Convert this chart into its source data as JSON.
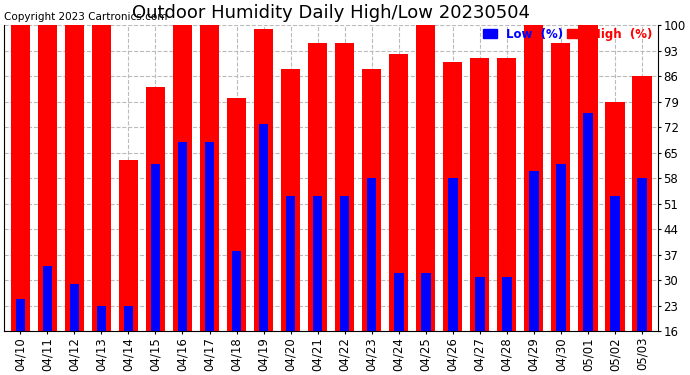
{
  "title": "Outdoor Humidity Daily High/Low 20230504",
  "copyright": "Copyright 2023 Cartronics.com",
  "legend_low": "Low  (%)",
  "legend_high": "High  (%)",
  "dates": [
    "04/10",
    "04/11",
    "04/12",
    "04/13",
    "04/14",
    "04/15",
    "04/16",
    "04/17",
    "04/18",
    "04/19",
    "04/20",
    "04/21",
    "04/22",
    "04/23",
    "04/24",
    "04/25",
    "04/26",
    "04/27",
    "04/28",
    "04/29",
    "04/30",
    "05/01",
    "05/02",
    "05/03"
  ],
  "high": [
    100,
    100,
    100,
    100,
    63,
    83,
    100,
    100,
    80,
    99,
    88,
    95,
    95,
    88,
    92,
    100,
    90,
    91,
    91,
    100,
    95,
    100,
    79,
    86
  ],
  "low": [
    25,
    34,
    29,
    23,
    23,
    62,
    68,
    68,
    38,
    73,
    53,
    53,
    53,
    58,
    32,
    32,
    58,
    31,
    31,
    60,
    62,
    76,
    53,
    58
  ],
  "bar_color_high": "#ff0000",
  "bar_color_low": "#0000ff",
  "background_color": "#ffffff",
  "grid_color": "#bbbbbb",
  "yticks": [
    16,
    23,
    30,
    37,
    44,
    51,
    58,
    65,
    72,
    79,
    86,
    93,
    100
  ],
  "ylim": [
    16,
    100
  ],
  "title_fontsize": 13,
  "tick_fontsize": 8.5,
  "copyright_fontsize": 7.5
}
